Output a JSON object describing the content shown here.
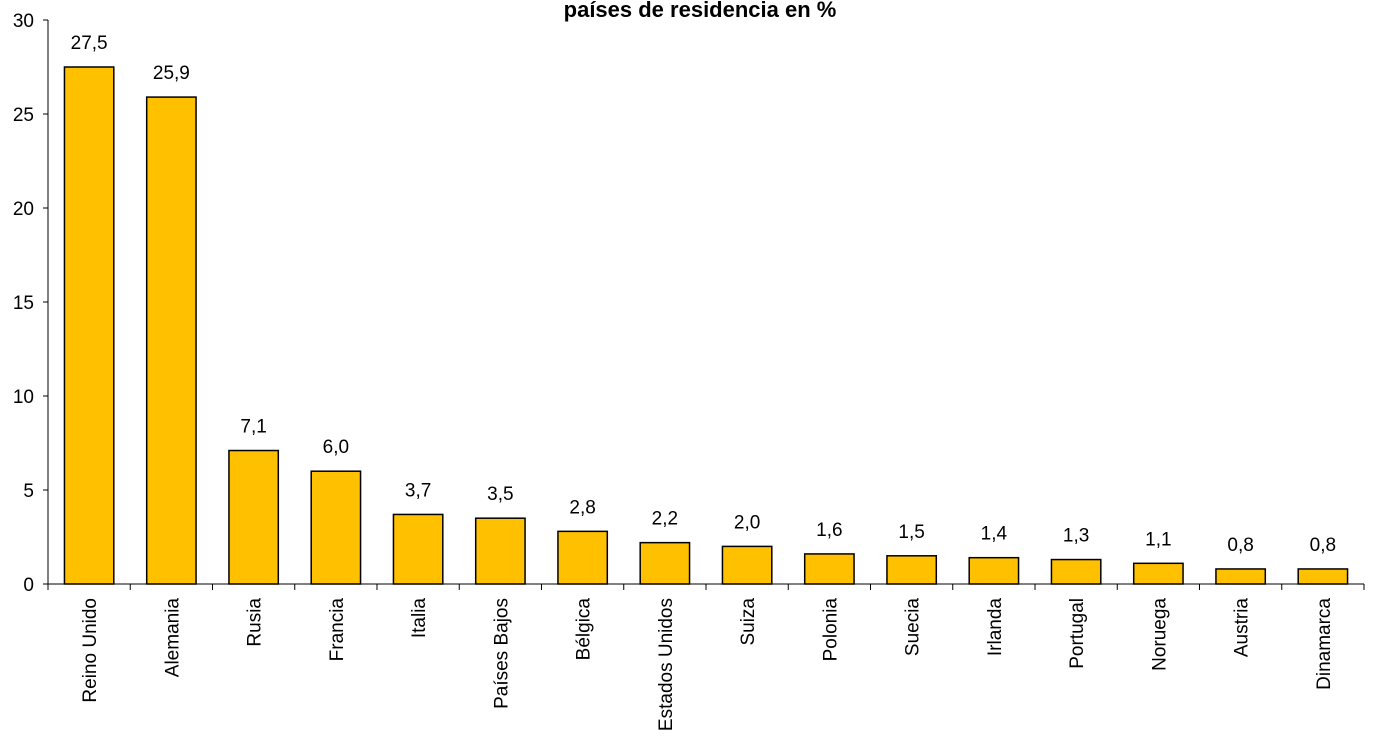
{
  "chart_data": {
    "type": "bar",
    "title": "países de residencia en %",
    "categories": [
      "Reino Unido",
      "Alemania",
      "Rusia",
      "Francia",
      "Italia",
      "Países Bajos",
      "Bélgica",
      "Estados Unidos",
      "Suiza",
      "Polonia",
      "Suecia",
      "Irlanda",
      "Portugal",
      "Noruega",
      "Austria",
      "Dinamarca"
    ],
    "values": [
      27.5,
      25.9,
      7.1,
      6.0,
      3.7,
      3.5,
      2.8,
      2.2,
      2.0,
      1.6,
      1.5,
      1.4,
      1.3,
      1.1,
      0.8,
      0.8
    ],
    "value_labels": [
      "27,5",
      "25,9",
      "7,1",
      "6,0",
      "3,7",
      "3,5",
      "2,8",
      "2,2",
      "2,0",
      "1,6",
      "1,5",
      "1,4",
      "1,3",
      "1,1",
      "0,8",
      "0,8"
    ],
    "y_ticks": [
      0,
      5,
      10,
      15,
      20,
      25,
      30
    ],
    "ylim": [
      0,
      30
    ],
    "xlabel": "",
    "ylabel": "",
    "grid": false,
    "legend": "none",
    "bar_color": "#FFC000",
    "bar_edge_color": "#000000"
  }
}
